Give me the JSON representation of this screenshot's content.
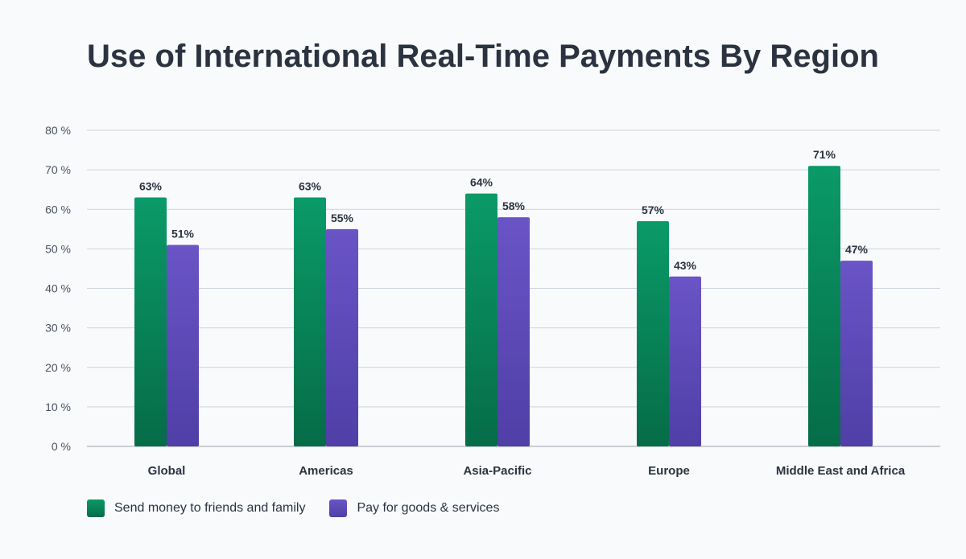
{
  "title": "Use of International Real-Time Payments By Region",
  "colors": {
    "series1_top": "#0a9a68",
    "series1_bottom": "#066c48",
    "series2_top": "#6a54c6",
    "series2_bottom": "#4f3fa6",
    "grid": "#cfd5dc",
    "text": "#2b3340",
    "axis_text": "#4a5260"
  },
  "chart_data": {
    "type": "bar",
    "categories": [
      "Global",
      "Americas",
      "Asia-Pacific",
      "Europe",
      "Middle East and Africa"
    ],
    "series": [
      {
        "name": "Send money to friends and family",
        "values": [
          63,
          63,
          64,
          57,
          71
        ],
        "labels": [
          "63%",
          "63%",
          "64%",
          "57%",
          "71%"
        ]
      },
      {
        "name": "Pay for goods & services",
        "values": [
          51,
          55,
          58,
          43,
          47
        ],
        "labels": [
          "51%",
          "55%",
          "58%",
          "43%",
          "47%"
        ]
      }
    ],
    "ylim": [
      0,
      80
    ],
    "yticks": [
      0,
      10,
      20,
      30,
      40,
      50,
      60,
      70,
      80
    ],
    "ytick_labels": [
      "0 %",
      "10 %",
      "20 %",
      "30 %",
      "40 %",
      "50 %",
      "60 %",
      "70 %",
      "80 %"
    ],
    "grid": true,
    "legend_position": "bottom-left"
  }
}
